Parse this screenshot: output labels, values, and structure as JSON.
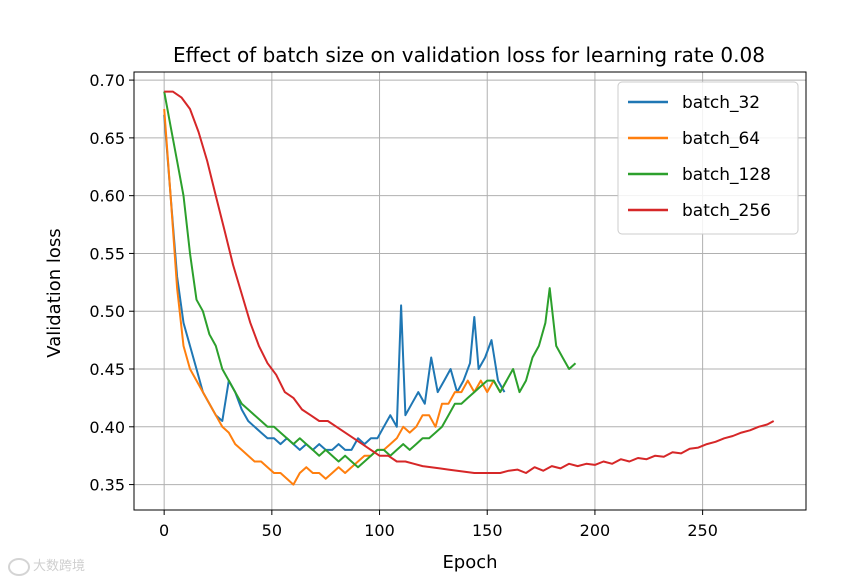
{
  "chart_data": {
    "type": "line",
    "title": "Effect of batch size on validation loss for learning rate 0.08",
    "xlabel": "Epoch",
    "ylabel": "Validation loss",
    "xlim": [
      -14,
      298
    ],
    "ylim": [
      0.328,
      0.707
    ],
    "xticks": [
      0,
      50,
      100,
      150,
      200,
      250
    ],
    "xtick_labels": [
      "0",
      "50",
      "100",
      "150",
      "200",
      "250"
    ],
    "yticks": [
      0.35,
      0.4,
      0.45,
      0.5,
      0.55,
      0.6,
      0.65,
      0.7
    ],
    "ytick_labels": [
      "0.35",
      "0.40",
      "0.45",
      "0.50",
      "0.55",
      "0.60",
      "0.65",
      "0.70"
    ],
    "grid": true,
    "legend_position": "top-right",
    "series": [
      {
        "name": "batch_32",
        "color": "#1f77b4",
        "x": [
          0,
          3,
          6,
          9,
          12,
          15,
          18,
          21,
          24,
          27,
          30,
          33,
          36,
          39,
          42,
          45,
          48,
          51,
          54,
          57,
          60,
          63,
          66,
          69,
          72,
          75,
          78,
          81,
          84,
          87,
          90,
          93,
          96,
          99,
          102,
          105,
          108,
          110,
          112,
          115,
          118,
          121,
          124,
          127,
          130,
          133,
          136,
          139,
          142,
          144,
          146,
          149,
          152,
          155,
          158
        ],
        "y": [
          0.67,
          0.6,
          0.53,
          0.49,
          0.47,
          0.45,
          0.43,
          0.42,
          0.41,
          0.405,
          0.44,
          0.43,
          0.415,
          0.405,
          0.4,
          0.395,
          0.39,
          0.39,
          0.385,
          0.39,
          0.385,
          0.38,
          0.385,
          0.38,
          0.385,
          0.38,
          0.38,
          0.385,
          0.38,
          0.38,
          0.39,
          0.385,
          0.39,
          0.39,
          0.4,
          0.41,
          0.4,
          0.505,
          0.41,
          0.42,
          0.43,
          0.42,
          0.46,
          0.43,
          0.44,
          0.45,
          0.43,
          0.44,
          0.455,
          0.495,
          0.45,
          0.46,
          0.475,
          0.44,
          0.43
        ]
      },
      {
        "name": "batch_64",
        "color": "#ff7f0e",
        "x": [
          0,
          3,
          6,
          9,
          12,
          15,
          18,
          21,
          24,
          27,
          30,
          33,
          36,
          39,
          42,
          45,
          48,
          51,
          54,
          57,
          60,
          63,
          66,
          69,
          72,
          75,
          78,
          81,
          84,
          87,
          90,
          93,
          96,
          99,
          102,
          105,
          108,
          111,
          114,
          117,
          120,
          123,
          126,
          129,
          132,
          135,
          138,
          141,
          144,
          147,
          150,
          153,
          156,
          159
        ],
        "y": [
          0.675,
          0.6,
          0.52,
          0.47,
          0.45,
          0.44,
          0.43,
          0.42,
          0.41,
          0.4,
          0.395,
          0.385,
          0.38,
          0.375,
          0.37,
          0.37,
          0.365,
          0.36,
          0.36,
          0.355,
          0.35,
          0.36,
          0.365,
          0.36,
          0.36,
          0.355,
          0.36,
          0.365,
          0.36,
          0.365,
          0.37,
          0.375,
          0.375,
          0.38,
          0.38,
          0.385,
          0.39,
          0.4,
          0.395,
          0.4,
          0.41,
          0.41,
          0.4,
          0.42,
          0.42,
          0.43,
          0.43,
          0.44,
          0.43,
          0.44,
          0.43,
          0.44,
          0.43,
          0.44
        ]
      },
      {
        "name": "batch_128",
        "color": "#2ca02c",
        "x": [
          0,
          3,
          6,
          9,
          12,
          15,
          18,
          21,
          24,
          27,
          30,
          33,
          36,
          39,
          42,
          45,
          48,
          51,
          54,
          57,
          60,
          63,
          66,
          69,
          72,
          75,
          78,
          81,
          84,
          87,
          90,
          93,
          96,
          99,
          102,
          105,
          108,
          111,
          114,
          117,
          120,
          123,
          126,
          129,
          132,
          135,
          138,
          141,
          144,
          147,
          150,
          153,
          156,
          159,
          162,
          165,
          168,
          171,
          174,
          177,
          179,
          182,
          185,
          188,
          191
        ],
        "y": [
          0.69,
          0.66,
          0.63,
          0.6,
          0.55,
          0.51,
          0.5,
          0.48,
          0.47,
          0.45,
          0.44,
          0.43,
          0.42,
          0.415,
          0.41,
          0.405,
          0.4,
          0.4,
          0.395,
          0.39,
          0.385,
          0.39,
          0.385,
          0.38,
          0.375,
          0.38,
          0.375,
          0.37,
          0.375,
          0.37,
          0.365,
          0.37,
          0.375,
          0.38,
          0.38,
          0.375,
          0.38,
          0.385,
          0.38,
          0.385,
          0.39,
          0.39,
          0.395,
          0.4,
          0.41,
          0.42,
          0.42,
          0.425,
          0.43,
          0.435,
          0.44,
          0.44,
          0.43,
          0.44,
          0.45,
          0.43,
          0.44,
          0.46,
          0.47,
          0.49,
          0.52,
          0.47,
          0.46,
          0.45,
          0.455
        ]
      },
      {
        "name": "batch_256",
        "color": "#d62728",
        "x": [
          0,
          4,
          8,
          12,
          16,
          20,
          24,
          28,
          32,
          36,
          40,
          44,
          48,
          52,
          56,
          60,
          64,
          68,
          72,
          76,
          80,
          84,
          88,
          92,
          96,
          100,
          104,
          108,
          112,
          116,
          120,
          124,
          128,
          132,
          136,
          140,
          144,
          148,
          152,
          156,
          160,
          164,
          168,
          172,
          176,
          180,
          184,
          188,
          192,
          196,
          200,
          204,
          208,
          212,
          216,
          220,
          224,
          228,
          232,
          236,
          240,
          244,
          248,
          252,
          256,
          260,
          264,
          268,
          272,
          276,
          280,
          283
        ],
        "y": [
          0.69,
          0.69,
          0.685,
          0.675,
          0.655,
          0.63,
          0.6,
          0.57,
          0.54,
          0.515,
          0.49,
          0.47,
          0.455,
          0.445,
          0.43,
          0.425,
          0.415,
          0.41,
          0.405,
          0.405,
          0.4,
          0.395,
          0.39,
          0.385,
          0.38,
          0.375,
          0.375,
          0.37,
          0.37,
          0.368,
          0.366,
          0.365,
          0.364,
          0.363,
          0.362,
          0.361,
          0.36,
          0.36,
          0.36,
          0.36,
          0.362,
          0.363,
          0.36,
          0.365,
          0.362,
          0.366,
          0.364,
          0.368,
          0.366,
          0.368,
          0.367,
          0.37,
          0.368,
          0.372,
          0.37,
          0.373,
          0.372,
          0.375,
          0.374,
          0.378,
          0.377,
          0.381,
          0.382,
          0.385,
          0.387,
          0.39,
          0.392,
          0.395,
          0.397,
          0.4,
          0.402,
          0.405
        ]
      }
    ]
  },
  "watermark": "大数跨境"
}
